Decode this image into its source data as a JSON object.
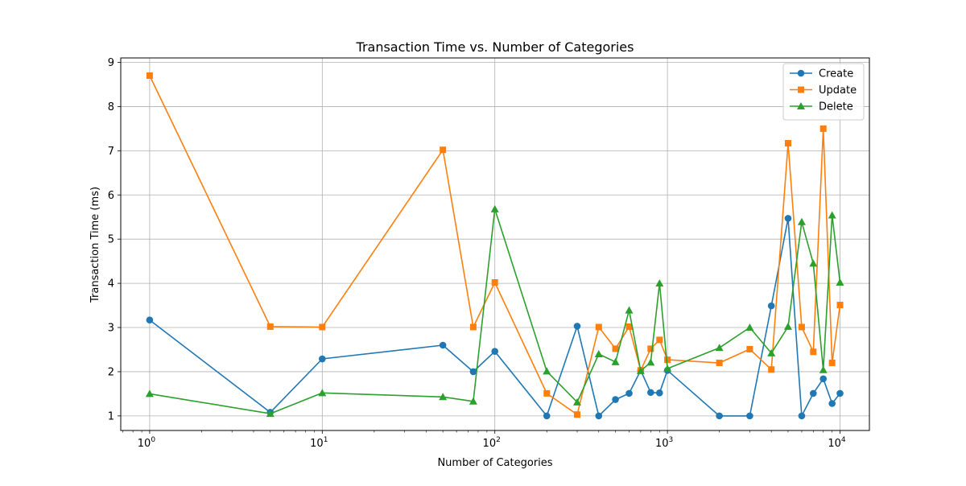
{
  "chart_data": {
    "type": "line",
    "title": "Transaction Time vs. Number of Categories",
    "xlabel": "Number of Categories",
    "ylabel": "Transaction Time (ms)",
    "xscale": "log",
    "xlim": [
      0.68,
      14800
    ],
    "ylim": [
      0.67,
      9.1
    ],
    "grid": true,
    "legend_position": "top-right",
    "x_ticks": [
      {
        "value": 1,
        "base": "10",
        "exp": "0"
      },
      {
        "value": 10,
        "base": "10",
        "exp": "1"
      },
      {
        "value": 100,
        "base": "10",
        "exp": "2"
      },
      {
        "value": 1000,
        "base": "10",
        "exp": "3"
      },
      {
        "value": 10000,
        "base": "10",
        "exp": "4"
      }
    ],
    "y_ticks": [
      1,
      2,
      3,
      4,
      5,
      6,
      7,
      8,
      9
    ],
    "x": [
      1,
      5,
      10,
      50,
      75,
      100,
      200,
      300,
      400,
      500,
      600,
      700,
      800,
      900,
      1000,
      2000,
      3000,
      4000,
      5000,
      6000,
      7000,
      8000,
      9000,
      10000
    ],
    "series": [
      {
        "name": "Create",
        "color": "#1f77b4",
        "marker": "circle",
        "values": [
          3.17,
          1.08,
          2.29,
          2.6,
          2.0,
          2.46,
          1.0,
          3.03,
          1.0,
          1.37,
          1.51,
          2.03,
          1.53,
          1.52,
          2.03,
          1.0,
          1.0,
          3.49,
          5.47,
          1.0,
          1.51,
          1.84,
          1.28,
          1.51
        ]
      },
      {
        "name": "Update",
        "color": "#ff7f0e",
        "marker": "square",
        "values": [
          8.7,
          3.02,
          3.01,
          7.02,
          3.01,
          4.02,
          1.51,
          1.03,
          3.01,
          2.52,
          3.02,
          2.03,
          2.52,
          2.72,
          2.27,
          2.2,
          2.51,
          2.05,
          7.17,
          3.01,
          2.45,
          7.5,
          2.2,
          3.51
        ]
      },
      {
        "name": "Delete",
        "color": "#2ca02c",
        "marker": "triangle",
        "values": [
          1.5,
          1.05,
          1.52,
          1.43,
          1.33,
          5.68,
          2.01,
          1.31,
          2.4,
          2.22,
          3.39,
          2.02,
          2.21,
          4.0,
          2.07,
          2.54,
          3.0,
          2.42,
          3.02,
          5.39,
          4.45,
          2.04,
          5.54,
          4.02
        ]
      }
    ]
  }
}
